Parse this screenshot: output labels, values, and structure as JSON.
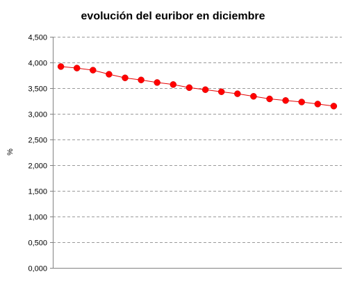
{
  "chart_data": {
    "type": "line",
    "title": "evolución del euribor en diciembre",
    "xlabel": "",
    "ylabel": "%",
    "ylim": [
      0,
      4.5
    ],
    "y_ticks": [
      {
        "value": 0,
        "label": "0,000"
      },
      {
        "value": 0.5,
        "label": "0,500"
      },
      {
        "value": 1.0,
        "label": "1,000"
      },
      {
        "value": 1.5,
        "label": "1,500"
      },
      {
        "value": 2.0,
        "label": "2,000"
      },
      {
        "value": 2.5,
        "label": "2,500"
      },
      {
        "value": 3.0,
        "label": "3,000"
      },
      {
        "value": 3.5,
        "label": "3,500"
      },
      {
        "value": 4.0,
        "label": "4,000"
      },
      {
        "value": 4.5,
        "label": "4,500"
      }
    ],
    "grid": "horizontal dashed",
    "legend": "none",
    "series": [
      {
        "values": [
          3.92,
          3.89,
          3.85,
          3.77,
          3.7,
          3.66,
          3.61,
          3.57,
          3.51,
          3.47,
          3.43,
          3.39,
          3.34,
          3.29,
          3.26,
          3.23,
          3.19,
          3.15
        ]
      }
    ]
  },
  "colors": {
    "series_line": "#e60000",
    "marker": "#ff0000",
    "grid": "#999999",
    "axis": "#808080"
  }
}
